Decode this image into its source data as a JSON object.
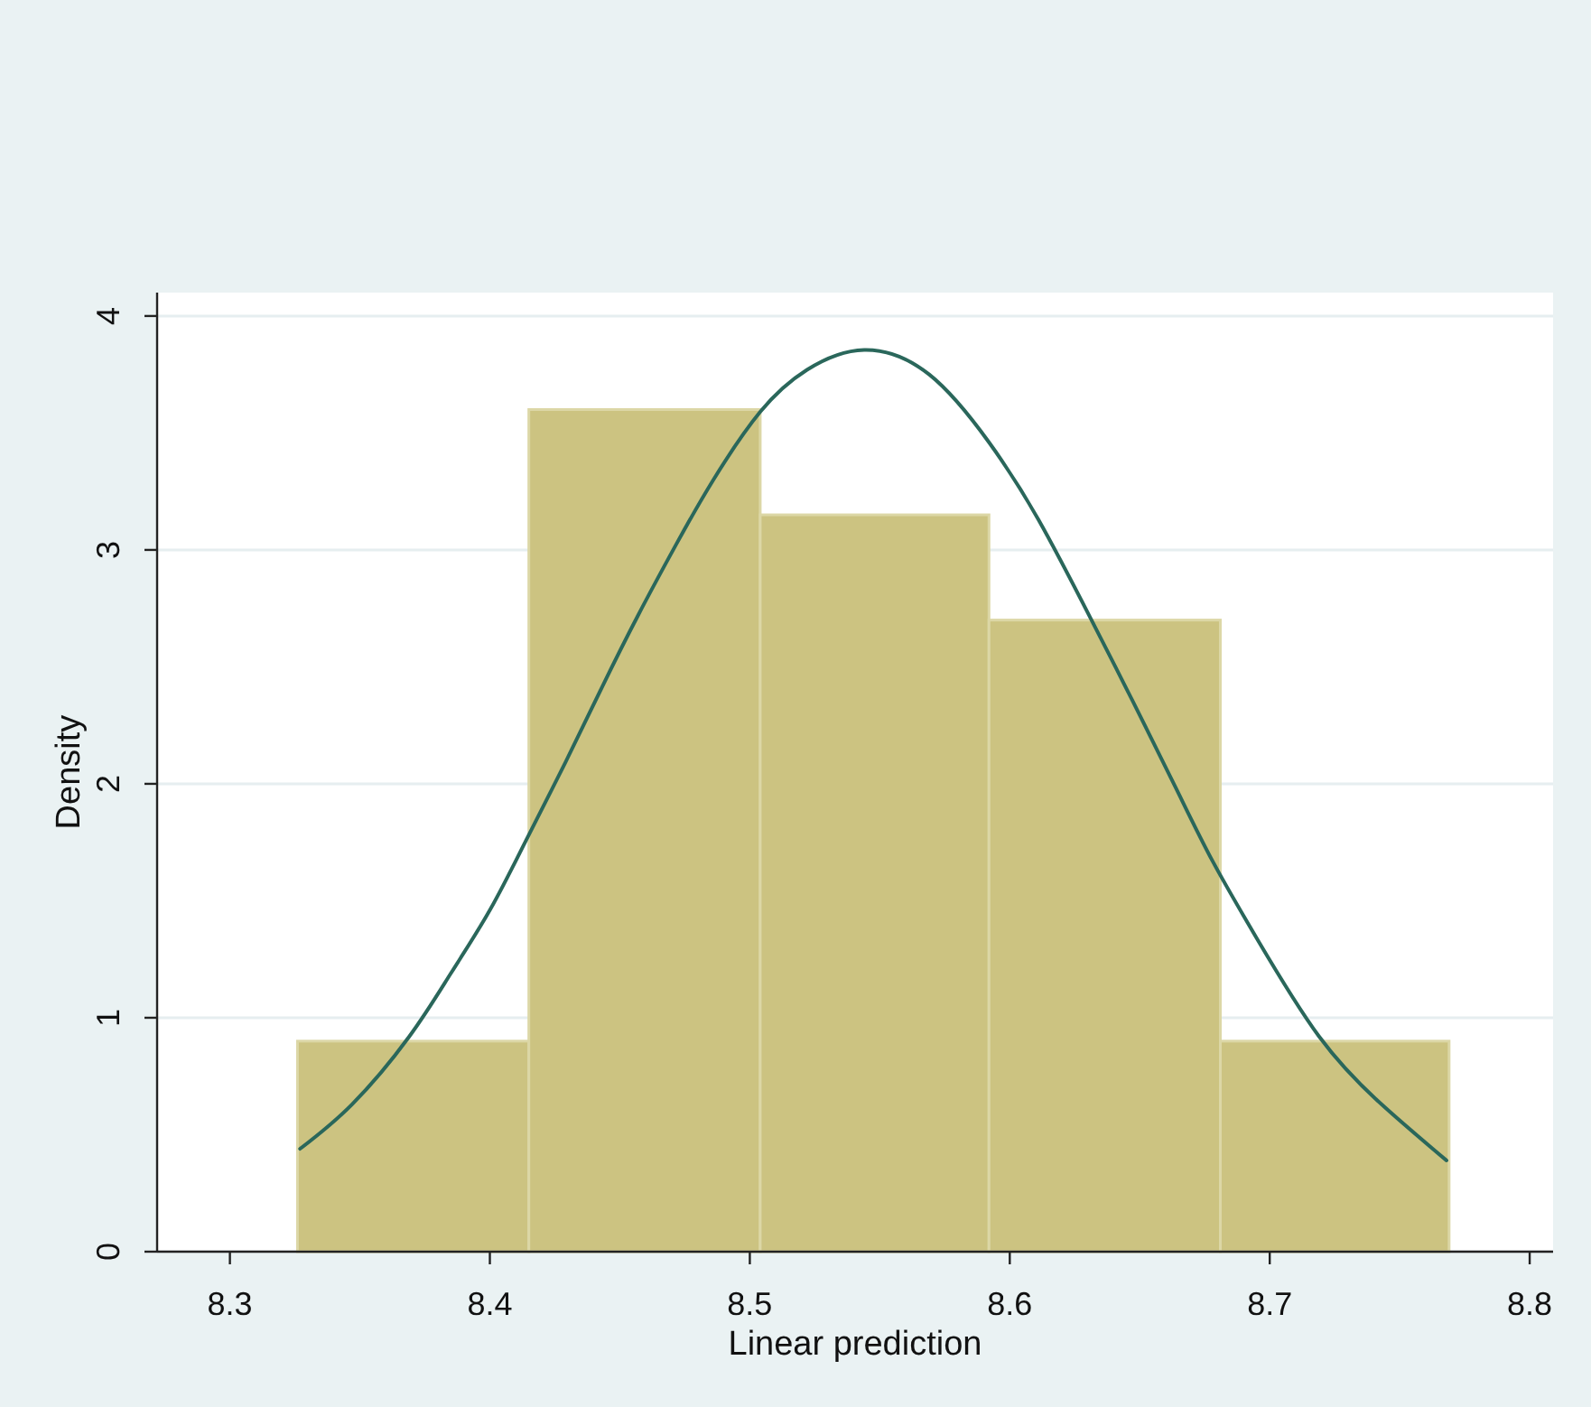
{
  "chart_data": {
    "type": "histogram",
    "xlabel": "Linear prediction",
    "ylabel": "Density",
    "xlim": [
      8.272,
      8.809
    ],
    "ylim": [
      0,
      4.1
    ],
    "xticks": [
      8.3,
      8.4,
      8.5,
      8.6,
      8.7,
      8.8
    ],
    "yticks": [
      0,
      1,
      2,
      3,
      4
    ],
    "grid": "y",
    "series": [
      {
        "type": "histogram",
        "color": "#ccc381",
        "bins": [
          8.326,
          8.415,
          8.504,
          8.592,
          8.681,
          8.769
        ],
        "values": [
          0.9,
          3.6,
          3.15,
          2.7,
          0.9
        ]
      },
      {
        "type": "line",
        "color": "#2a675b",
        "x": [
          8.327,
          8.347,
          8.369,
          8.385,
          8.4,
          8.414,
          8.429,
          8.443,
          8.457,
          8.472,
          8.486,
          8.504,
          8.522,
          8.544,
          8.569,
          8.592,
          8.611,
          8.631,
          8.647,
          8.664,
          8.678,
          8.695,
          8.719,
          8.743,
          8.768
        ],
        "values": [
          0.44,
          0.63,
          0.92,
          1.19,
          1.46,
          1.76,
          2.09,
          2.41,
          2.72,
          3.03,
          3.3,
          3.59,
          3.77,
          3.855,
          3.75,
          3.46,
          3.13,
          2.71,
          2.36,
          1.98,
          1.67,
          1.34,
          0.92,
          0.63,
          0.39
        ]
      }
    ]
  }
}
